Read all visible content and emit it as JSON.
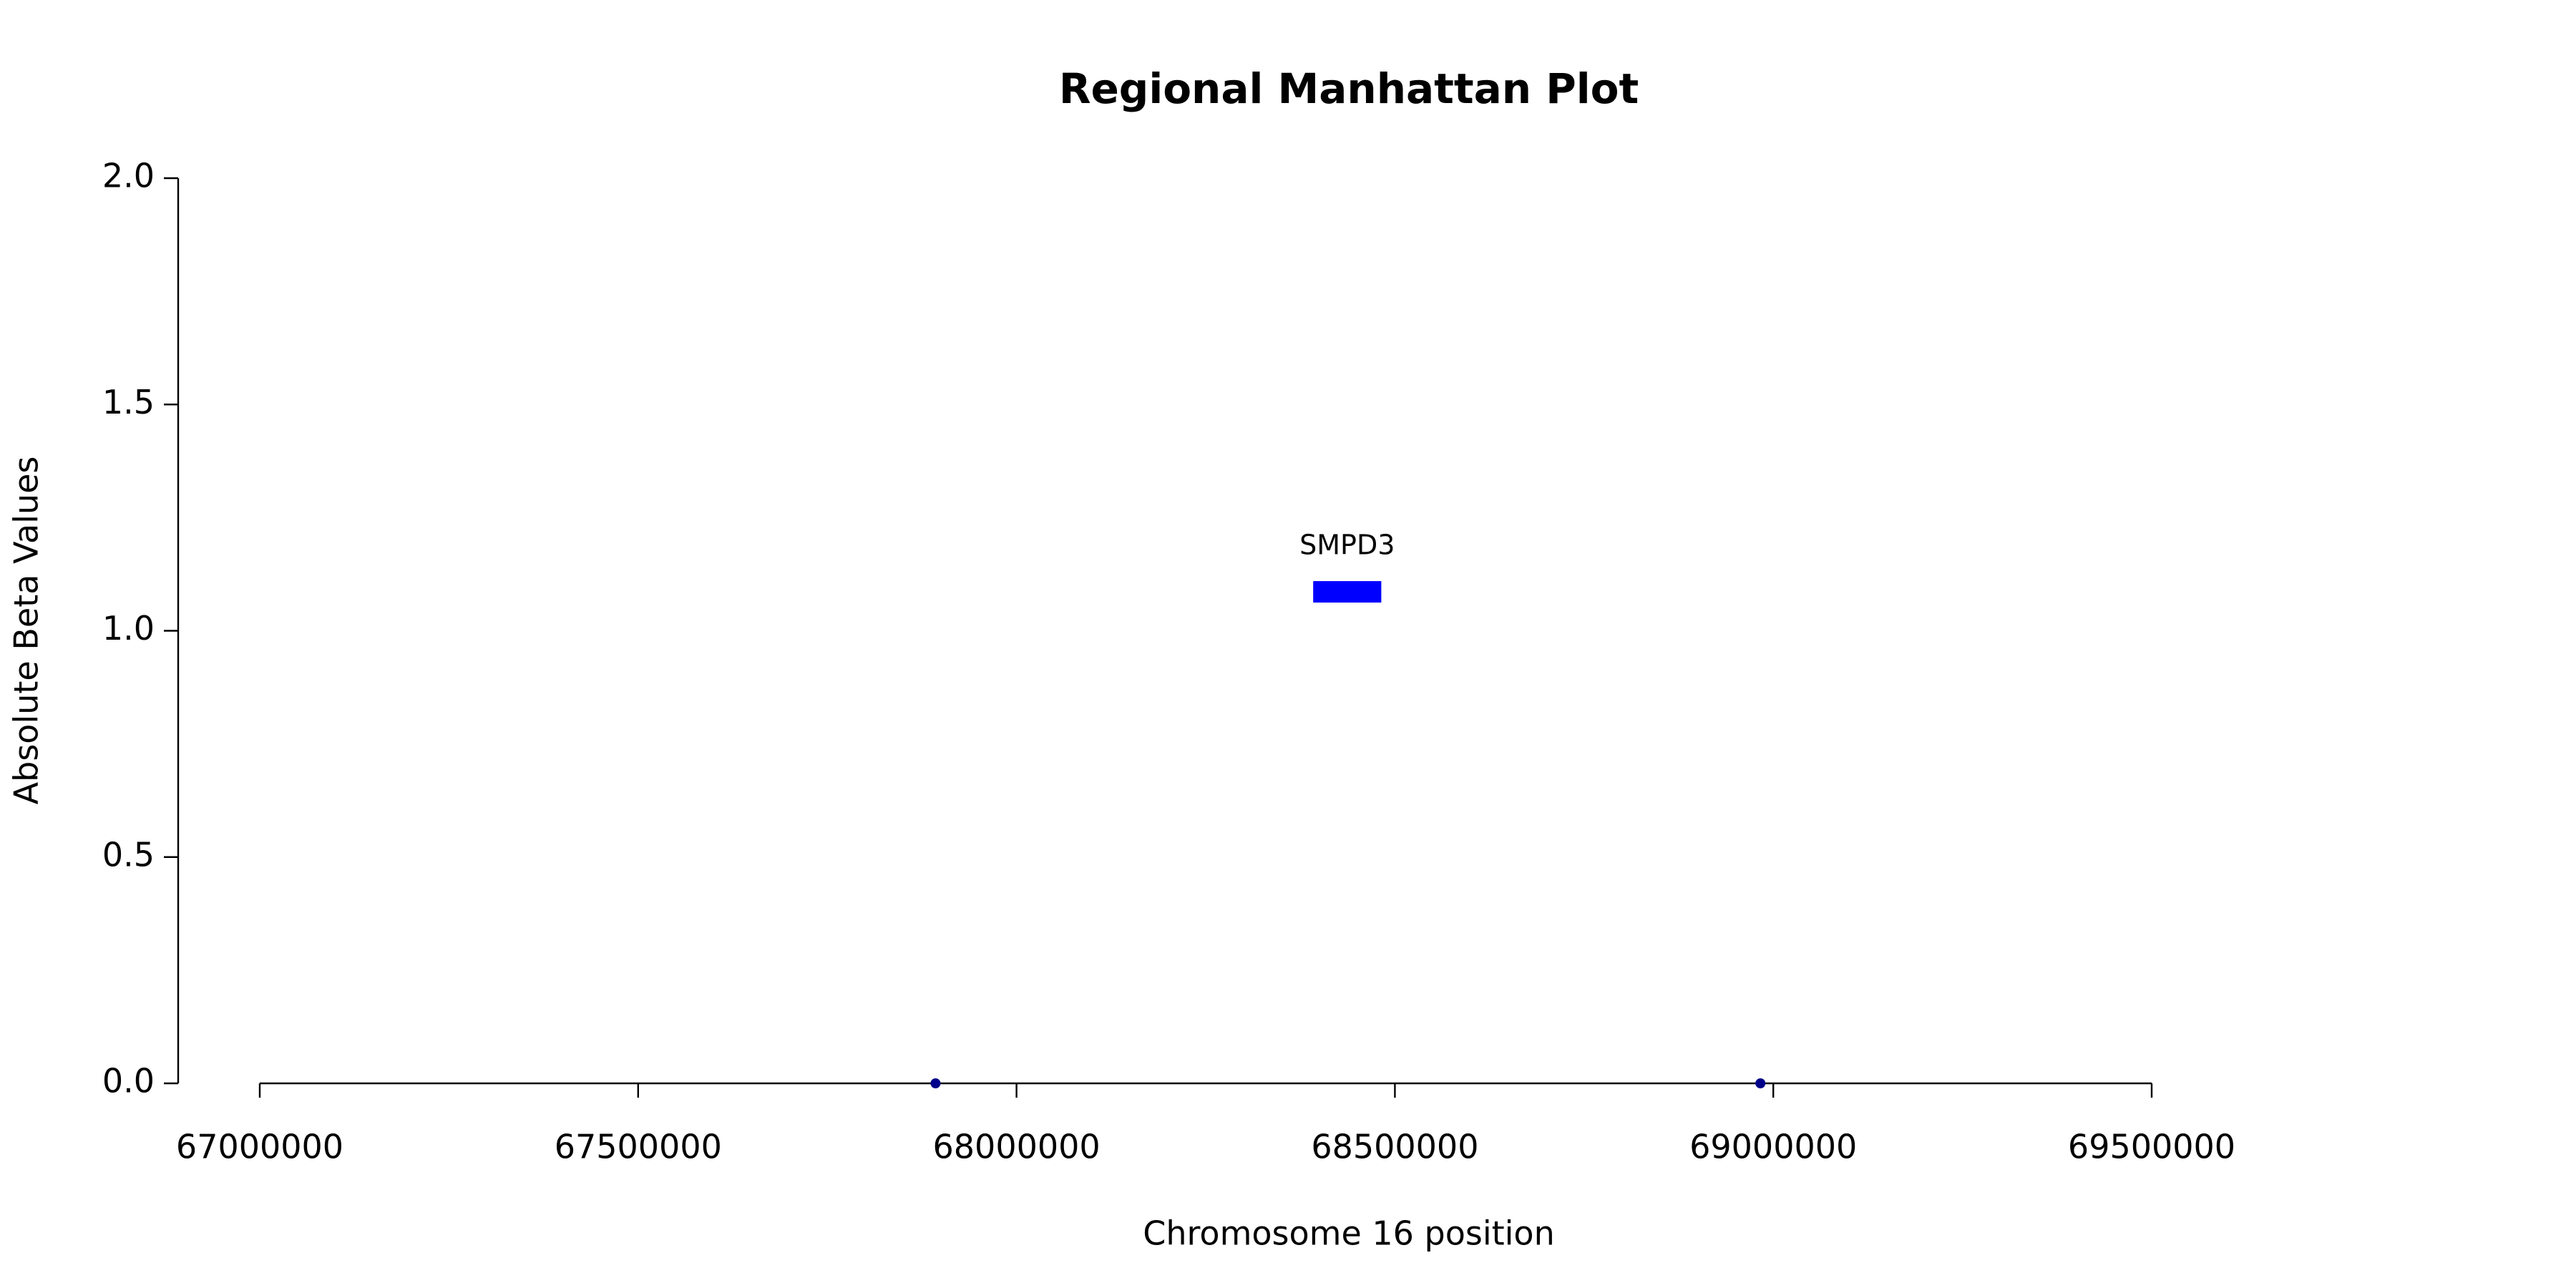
{
  "chart_data": {
    "type": "scatter",
    "title": "Regional Manhattan Plot",
    "x_label": "Chromosome 16 position",
    "y_label": "Absolute Beta Values",
    "x": [
      67893000,
      68983000
    ],
    "values": [
      0,
      0
    ],
    "color": "#00008b",
    "genes": [
      {
        "name": "SMPD3",
        "start": 68392000,
        "end": 68482000,
        "y": 1.086,
        "color": "#0000ff"
      }
    ],
    "xlim": [
      67000000,
      69500000
    ],
    "xticks": [
      67000000,
      67500000,
      68000000,
      68500000,
      69000000,
      69500000
    ],
    "ylim": [
      0,
      2
    ],
    "yticks": [
      {
        "value": 0,
        "label": "0.0"
      },
      {
        "value": 0.5,
        "label": "0.5"
      },
      {
        "value": 1,
        "label": "1.0"
      },
      {
        "value": 1.5,
        "label": "1.5"
      },
      {
        "value": 2,
        "label": "2.0"
      }
    ],
    "grid": false
  }
}
